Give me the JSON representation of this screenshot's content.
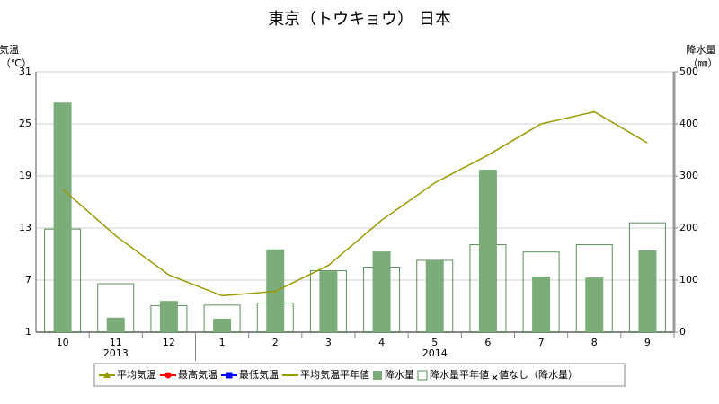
{
  "chart_data": {
    "type": "bar",
    "title": "東京（トウキョウ） 日本",
    "ylabel": [
      "気温",
      "（℃）"
    ],
    "y2label": [
      "降水量",
      "（㎜）"
    ],
    "categories": [
      "10",
      "11",
      "12",
      "1",
      "2",
      "3",
      "4",
      "5",
      "6",
      "7",
      "8",
      "9"
    ],
    "groups": [
      {
        "label": "2013",
        "span": 3
      },
      {
        "label": "2014",
        "span": 9
      }
    ],
    "ylim": [
      1,
      31
    ],
    "yticks": [
      1,
      7,
      13,
      19,
      25,
      31
    ],
    "y2lim": [
      0,
      500
    ],
    "y2ticks": [
      0,
      100,
      200,
      300,
      400,
      500
    ],
    "grid": true,
    "series": [
      {
        "name": "平均気温",
        "kind": "line",
        "marker": "triangle",
        "color": "#999900",
        "values": [
          null,
          null,
          null,
          null,
          null,
          null,
          null,
          null,
          null,
          null,
          null,
          null
        ]
      },
      {
        "name": "最高気温",
        "kind": "line",
        "marker": "circle",
        "color": "#ff0000",
        "values": [
          null,
          null,
          null,
          null,
          null,
          null,
          null,
          null,
          null,
          null,
          null,
          null
        ]
      },
      {
        "name": "最低気温",
        "kind": "line",
        "marker": "square",
        "color": "#0000ff",
        "values": [
          null,
          null,
          null,
          null,
          null,
          null,
          null,
          null,
          null,
          null,
          null,
          null
        ]
      },
      {
        "name": "平均気温平年値",
        "kind": "line",
        "marker": "none",
        "color": "#999900",
        "values": [
          17.5,
          12.1,
          7.6,
          5.2,
          5.7,
          8.7,
          13.9,
          18.2,
          21.4,
          25.0,
          26.4,
          22.8
        ]
      },
      {
        "name": "降水量",
        "kind": "bar",
        "axis": "y2",
        "color": "#7aad7a",
        "values": [
          441,
          28,
          60,
          26,
          159,
          117,
          155,
          138,
          312,
          107,
          105,
          157
        ]
      },
      {
        "name": "降水量平年値",
        "kind": "bar_outline",
        "axis": "y2",
        "color": "#5a8f5a",
        "values": [
          198,
          93,
          51,
          52,
          56,
          118,
          125,
          138,
          168,
          154,
          168,
          210
        ]
      }
    ],
    "no_data_legend": "値なし（降水量）"
  }
}
